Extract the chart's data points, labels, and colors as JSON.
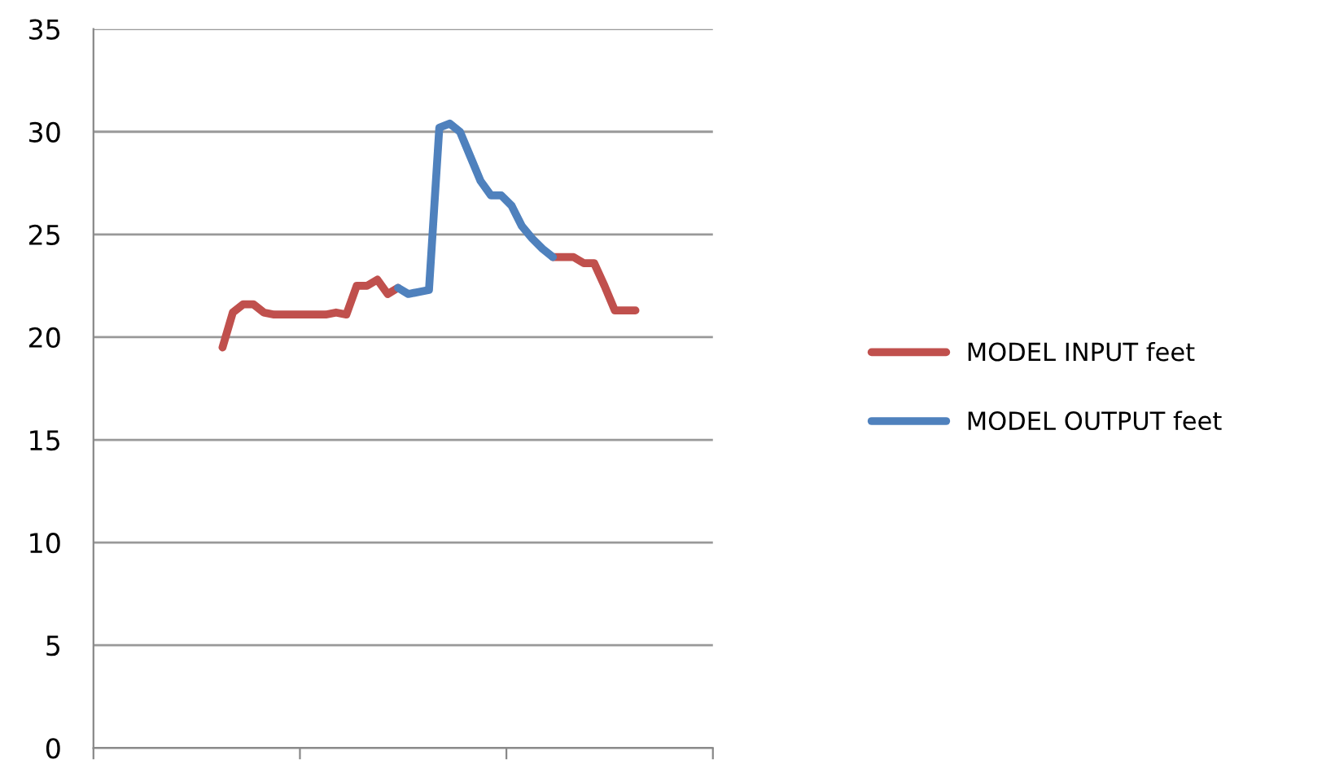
{
  "chart_data": {
    "type": "line",
    "categories": [
      null,
      null,
      null,
      null,
      null,
      null,
      null,
      null,
      null,
      null,
      null,
      null,
      null,
      null,
      null,
      null,
      null,
      null,
      null,
      null,
      null,
      null,
      null,
      null,
      null,
      null,
      null,
      null,
      null,
      null,
      null,
      null,
      null,
      null,
      null,
      null,
      null,
      null,
      null,
      null,
      null,
      null,
      null,
      null,
      null,
      null,
      null,
      null,
      null,
      null,
      null,
      null,
      null,
      null,
      null,
      null,
      null,
      null,
      null,
      null
    ],
    "series": [
      {
        "name": "MODEL INPUT feet",
        "color": "#c0504d",
        "values": [
          null,
          null,
          null,
          null,
          null,
          null,
          null,
          null,
          null,
          null,
          null,
          null,
          19.5,
          21.2,
          21.6,
          21.6,
          21.2,
          21.1,
          21.1,
          21.1,
          21.1,
          21.1,
          21.1,
          21.2,
          21.1,
          22.5,
          22.5,
          22.8,
          22.1,
          22.4,
          null,
          null,
          null,
          null,
          null,
          null,
          null,
          null,
          null,
          null,
          null,
          null,
          null,
          null,
          23.9,
          23.9,
          23.9,
          23.6,
          23.6,
          22.5,
          21.3,
          21.3,
          21.3,
          null,
          null,
          null,
          null,
          null,
          null,
          null
        ]
      },
      {
        "name": "MODEL OUTPUT feet",
        "color": "#4f81bd",
        "values": [
          null,
          null,
          null,
          null,
          null,
          null,
          null,
          null,
          null,
          null,
          null,
          null,
          null,
          null,
          null,
          null,
          null,
          null,
          null,
          null,
          null,
          null,
          null,
          null,
          null,
          null,
          null,
          null,
          null,
          22.4,
          22.1,
          22.2,
          22.3,
          30.2,
          30.4,
          30.0,
          28.8,
          27.6,
          26.9,
          26.9,
          26.4,
          25.4,
          24.8,
          24.3,
          23.9,
          null,
          null,
          null,
          null,
          null,
          null,
          null,
          null,
          null,
          null,
          null,
          null,
          null,
          null,
          null
        ]
      }
    ],
    "ylim": [
      0,
      35
    ],
    "yticks": [
      0,
      5,
      10,
      15,
      20,
      25,
      30,
      35
    ],
    "grid": "y",
    "legend": "right",
    "marker": "none",
    "line_style": "solid"
  }
}
